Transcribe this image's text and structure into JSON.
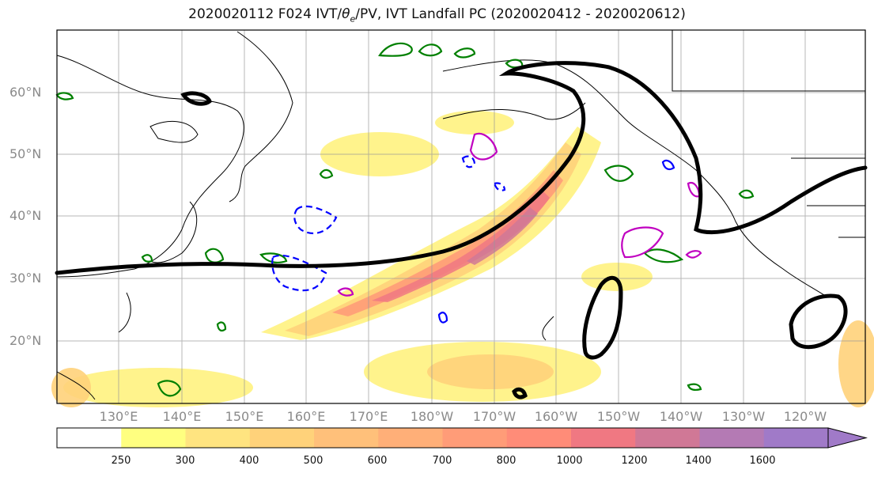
{
  "title_main": "2020020112 F024 IVT/",
  "title_theta": "θ",
  "title_sub": "e",
  "title_rest": "/PV, IVT Landfall PC (2020020412 - 2020020612)",
  "lat_labels": [
    "60°N",
    "50°N",
    "40°N",
    "30°N",
    "20°N"
  ],
  "lon_labels": [
    "130°E",
    "140°E",
    "150°E",
    "160°E",
    "170°E",
    "180°W",
    "170°W",
    "160°W",
    "150°W",
    "140°W",
    "130°W",
    "120°W"
  ],
  "colorbar": {
    "ticks": [
      "250",
      "300",
      "400",
      "500",
      "600",
      "700",
      "800",
      "1000",
      "1200",
      "1400",
      "1600"
    ],
    "colors": [
      "#ffffff",
      "#ffff80",
      "#ffe480",
      "#ffd27a",
      "#ffc07a",
      "#ffaf78",
      "#ff9c78",
      "#ff8c78",
      "#f07882",
      "#d07896",
      "#b47ab4",
      "#a07ac8"
    ]
  },
  "colors": {
    "trough": "#000000",
    "pv_green": "#008000",
    "pv_blue": "#0000ff",
    "pv_magenta": "#c000c0",
    "coast": "#000000"
  }
}
